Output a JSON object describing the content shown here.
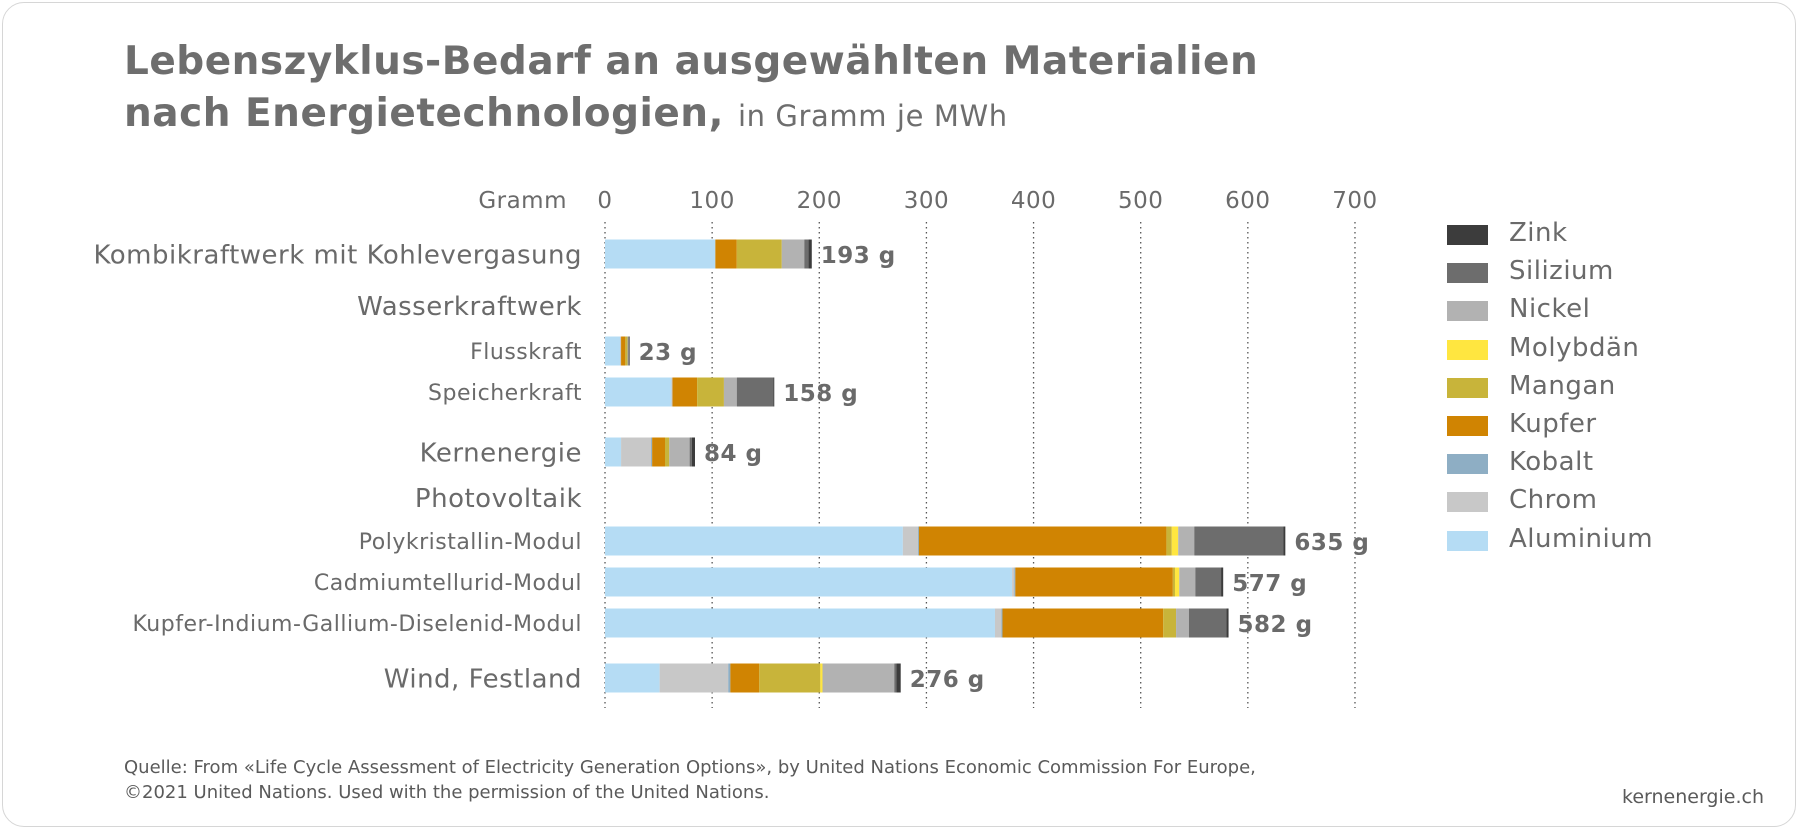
{
  "title": {
    "line1": "Lebenszyklus-Bedarf an ausgewählten Materialien",
    "line2": "nach Energietechnologien,",
    "subtitle": "in Gramm je MWh"
  },
  "source": {
    "line1": "Quelle: From «Life Cycle Assessment of Electricity Generation Options», by United Nations Economic Commission For Europe,",
    "line2": "©2021 United Nations. Used with the permission of the United Nations."
  },
  "site": "kernenergie.ch",
  "chart_data": {
    "type": "bar",
    "orientation": "horizontal",
    "stacked": true,
    "xlabel": "Gramm",
    "xlim": [
      0,
      700
    ],
    "xticks": [
      0,
      100,
      200,
      300,
      400,
      500,
      600,
      700
    ],
    "grid": "vertical dotted",
    "legend_position": "right",
    "materials": [
      "Aluminium",
      "Chrom",
      "Kobalt",
      "Kupfer",
      "Mangan",
      "Molybdän",
      "Nickel",
      "Silizium",
      "Zink"
    ],
    "colors": {
      "Aluminium": "#b5dcf4",
      "Chrom": "#c8c8c8",
      "Kobalt": "#8eaec4",
      "Kupfer": "#d08402",
      "Mangan": "#c8b43a",
      "Molybdän": "#ffe640",
      "Nickel": "#b2b2b2",
      "Silizium": "#6d6d6d",
      "Zink": "#3c3c3c"
    },
    "group_headers": [
      "Wasserkraftwerk",
      "Photovoltaik"
    ],
    "rows": [
      {
        "label": "Kombikraftwerk mit Kohlevergasung",
        "total_label": "193 g",
        "values": {
          "Aluminium": 103,
          "Chrom": 0,
          "Kobalt": 0,
          "Kupfer": 20,
          "Mangan": 42,
          "Molybdän": 0,
          "Nickel": 21,
          "Silizium": 4,
          "Zink": 3
        }
      },
      {
        "label": "Flusskraft",
        "total_label": "23 g",
        "values": {
          "Aluminium": 14,
          "Chrom": 1,
          "Kobalt": 0,
          "Kupfer": 4,
          "Mangan": 2,
          "Molybdän": 0,
          "Nickel": 1,
          "Silizium": 0,
          "Zink": 1
        }
      },
      {
        "label": "Speicherkraft",
        "total_label": "158 g",
        "values": {
          "Aluminium": 62,
          "Chrom": 1,
          "Kobalt": 0,
          "Kupfer": 23,
          "Mangan": 25,
          "Molybdän": 0,
          "Nickel": 12,
          "Silizium": 34,
          "Zink": 1
        }
      },
      {
        "label": "Kernenergie",
        "total_label": "84 g",
        "values": {
          "Aluminium": 15,
          "Chrom": 28,
          "Kobalt": 1,
          "Kupfer": 12,
          "Mangan": 4,
          "Molybdän": 0,
          "Nickel": 19,
          "Silizium": 2,
          "Zink": 3
        }
      },
      {
        "label": "Polykristallin-Modul",
        "total_label": "635 g",
        "values": {
          "Aluminium": 278,
          "Chrom": 14,
          "Kobalt": 1,
          "Kupfer": 231,
          "Mangan": 5,
          "Molybdän": 6,
          "Nickel": 15,
          "Silizium": 83,
          "Zink": 2
        }
      },
      {
        "label": "Cadmiumtellurid-Modul",
        "total_label": "577 g",
        "values": {
          "Aluminium": 380,
          "Chrom": 2,
          "Kobalt": 1,
          "Kupfer": 147,
          "Mangan": 2,
          "Molybdän": 4,
          "Nickel": 15,
          "Silizium": 24,
          "Zink": 2
        }
      },
      {
        "label": "Kupfer-Indium-Gallium-Diselenid-Modul",
        "total_label": "582 g",
        "values": {
          "Aluminium": 364,
          "Chrom": 6,
          "Kobalt": 1,
          "Kupfer": 150,
          "Mangan": 12,
          "Molybdän": 0,
          "Nickel": 12,
          "Silizium": 35,
          "Zink": 2
        }
      },
      {
        "label": "Wind, Festland",
        "total_label": "276 g",
        "values": {
          "Aluminium": 51,
          "Chrom": 64,
          "Kobalt": 2,
          "Kupfer": 27,
          "Mangan": 57,
          "Molybdän": 2,
          "Nickel": 67,
          "Silizium": 2,
          "Zink": 4
        }
      }
    ],
    "legend_order": [
      "Zink",
      "Silizium",
      "Nickel",
      "Molybdän",
      "Mangan",
      "Kupfer",
      "Kobalt",
      "Chrom",
      "Aluminium"
    ]
  }
}
